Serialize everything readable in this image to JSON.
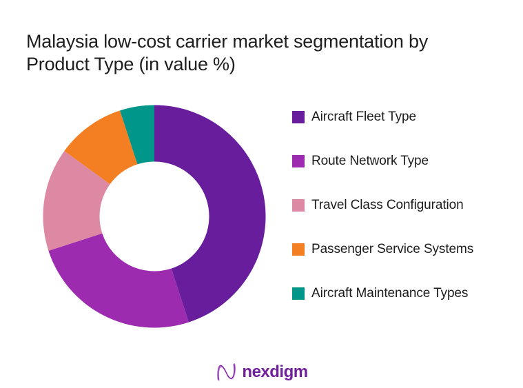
{
  "page": {
    "background": "#ffffff",
    "title_line1": "Malaysia low-cost carrier market segmentation by",
    "title_line2": "Product Type (in value %)"
  },
  "chart_data": {
    "type": "pie",
    "subtype": "donut",
    "title": "Malaysia low-cost carrier market segmentation by Product Type (in value %)",
    "categories": [
      "Aircraft Fleet Type",
      "Route Network Type",
      "Travel Class Configuration",
      "Passenger Service Systems",
      "Aircraft Maintenance Types"
    ],
    "values": [
      45,
      25,
      15,
      10,
      5
    ],
    "unit": "value %",
    "colors": [
      "#681E9C",
      "#9C2BB0",
      "#DE89A3",
      "#F47E22",
      "#009689"
    ],
    "start_angle_deg": 0,
    "direction": "clockwise",
    "inner_radius_ratio": 0.49,
    "legend_position": "right",
    "data_labels_shown": false
  },
  "legend": {
    "items": [
      {
        "label": "Aircraft Fleet Type",
        "color": "#681E9C"
      },
      {
        "label": "Route Network Type",
        "color": "#9C2BB0"
      },
      {
        "label": "Travel Class Configuration",
        "color": "#DE89A3"
      },
      {
        "label": "Passenger Service Systems",
        "color": "#F47E22"
      },
      {
        "label": "Aircraft Maintenance Types",
        "color": "#009689"
      }
    ]
  },
  "footer": {
    "brand": "nexdigm",
    "brand_color": "#71209B"
  }
}
